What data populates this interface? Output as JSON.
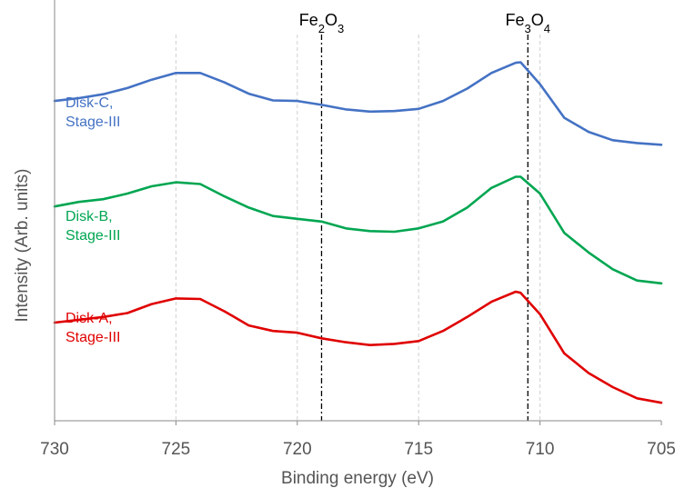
{
  "chart_data": {
    "type": "line",
    "xlabel": "Binding energy (eV)",
    "ylabel": "Intensity (Arb. units)",
    "xlim": [
      730,
      705
    ],
    "x_reversed": true,
    "x_ticks": [
      "730",
      "725",
      "720",
      "715",
      "710",
      "705"
    ],
    "y_ticks_shown": false,
    "gridlines_x": [
      725,
      720,
      715,
      710
    ],
    "grid": "vertical dashed at 725, 720, 715, 710",
    "reference_lines": [
      {
        "label_main": "Fe",
        "sub1": "2",
        "mid": "O",
        "sub2": "3",
        "x": 719.0
      },
      {
        "label_main": "Fe",
        "sub1": "3",
        "mid": "O",
        "sub2": "4",
        "x": 710.5
      }
    ],
    "series": [
      {
        "name_line1": "Disk-C,",
        "name_line2": "Stage-III",
        "color": "#4472c4",
        "x": [
          730,
          729,
          728,
          727,
          726,
          725,
          724,
          723,
          722,
          721,
          720,
          719,
          718,
          717,
          716,
          715,
          714,
          713,
          712,
          711,
          710.8,
          710,
          709,
          708,
          707,
          706,
          705
        ],
        "y": [
          5.4,
          5.45,
          5.52,
          5.63,
          5.78,
          5.9,
          5.9,
          5.73,
          5.53,
          5.41,
          5.4,
          5.33,
          5.25,
          5.21,
          5.22,
          5.26,
          5.4,
          5.62,
          5.9,
          6.08,
          6.09,
          5.7,
          5.1,
          4.85,
          4.7,
          4.65,
          4.62
        ]
      },
      {
        "name_line1": "Disk-B,",
        "name_line2": "Stage-III",
        "color": "#00a651",
        "x": [
          730,
          729,
          728,
          727,
          726,
          725,
          724,
          723,
          722,
          721,
          720,
          719,
          718,
          717,
          716,
          715,
          714,
          713,
          712,
          711,
          710.8,
          710,
          709,
          708,
          707,
          706,
          705
        ],
        "y": [
          3.52,
          3.6,
          3.65,
          3.75,
          3.88,
          3.95,
          3.92,
          3.7,
          3.5,
          3.35,
          3.3,
          3.25,
          3.13,
          3.08,
          3.07,
          3.13,
          3.25,
          3.5,
          3.85,
          4.05,
          4.05,
          3.75,
          3.05,
          2.7,
          2.4,
          2.2,
          2.15
        ]
      },
      {
        "name_line1": "Disk-A,",
        "name_line2": "Stage-III",
        "color": "#e00000",
        "x": [
          730,
          729,
          728,
          727,
          726,
          725,
          724,
          723,
          722,
          721,
          720,
          719,
          718,
          717,
          716,
          715,
          714,
          713,
          712,
          711,
          710.8,
          710,
          709,
          708,
          707,
          706,
          705
        ],
        "y": [
          1.45,
          1.5,
          1.55,
          1.62,
          1.78,
          1.88,
          1.87,
          1.65,
          1.4,
          1.3,
          1.27,
          1.17,
          1.1,
          1.05,
          1.07,
          1.12,
          1.3,
          1.55,
          1.82,
          2.0,
          1.98,
          1.6,
          0.9,
          0.55,
          0.3,
          0.1,
          0.02
        ]
      }
    ]
  }
}
